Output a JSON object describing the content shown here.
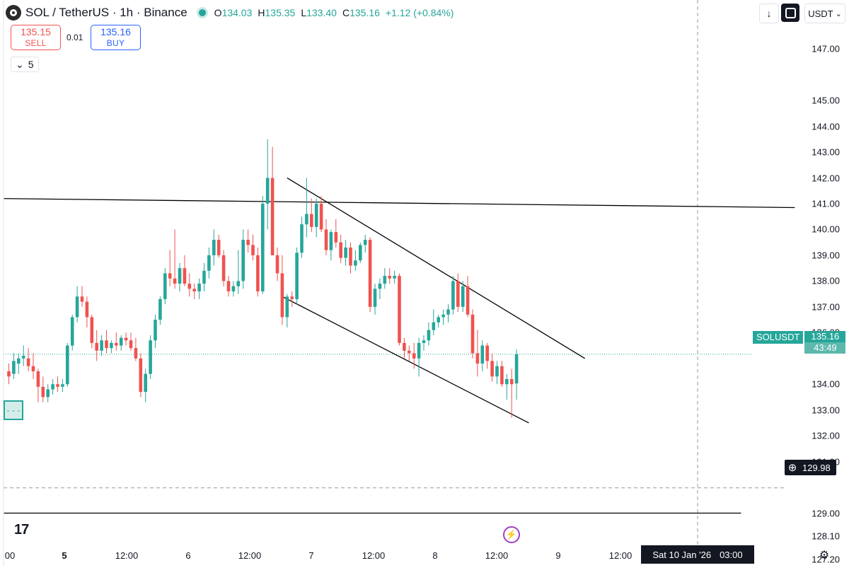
{
  "header": {
    "symbol": "SOL / TetherUS · 1h · Binance",
    "open_label": "O",
    "open": "134.03",
    "high_label": "H",
    "high": "135.35",
    "low_label": "L",
    "low": "133.40",
    "close_label": "C",
    "close": "135.16",
    "change": "+1.12 (+0.84%)"
  },
  "trade": {
    "sell_price": "135.15",
    "sell_label": "SELL",
    "spread": "0.01",
    "buy_price": "135.16",
    "buy_label": "BUY"
  },
  "indicators_toggle": {
    "count": "5"
  },
  "toolbar": {
    "currency": "USDT"
  },
  "price_axis": {
    "ticks": [
      {
        "label": "147.00",
        "value": 147.0
      },
      {
        "label": "145.00",
        "value": 145.0
      },
      {
        "label": "144.00",
        "value": 144.0
      },
      {
        "label": "143.00",
        "value": 143.0
      },
      {
        "label": "142.00",
        "value": 142.0
      },
      {
        "label": "141.00",
        "value": 141.0
      },
      {
        "label": "140.00",
        "value": 140.0
      },
      {
        "label": "139.00",
        "value": 139.0
      },
      {
        "label": "138.00",
        "value": 138.0
      },
      {
        "label": "137.00",
        "value": 137.0
      },
      {
        "label": "136.00",
        "value": 136.0
      },
      {
        "label": "134.00",
        "value": 134.0
      },
      {
        "label": "133.00",
        "value": 133.0
      },
      {
        "label": "132.00",
        "value": 132.0
      },
      {
        "label": "131.00",
        "value": 131.0
      },
      {
        "label": "129.00",
        "value": 129.0
      },
      {
        "label": "128.10",
        "value": 128.1
      },
      {
        "label": "127.20",
        "value": 127.2
      }
    ],
    "last_symbol": "SOLUSDT",
    "last_price": "135.16",
    "countdown": "43:49",
    "crosshair_price": "129.98"
  },
  "time_axis": {
    "labels": [
      {
        "label": "00",
        "bold": false
      },
      {
        "label": "5",
        "bold": true
      },
      {
        "label": "12:00",
        "bold": false
      },
      {
        "label": "6",
        "bold": false
      },
      {
        "label": "12:00",
        "bold": false
      },
      {
        "label": "7",
        "bold": false
      },
      {
        "label": "12:00",
        "bold": false
      },
      {
        "label": "8",
        "bold": false
      },
      {
        "label": "12:00",
        "bold": false
      },
      {
        "label": "9",
        "bold": false
      },
      {
        "label": "12:00",
        "bold": false
      }
    ],
    "crosshair_date": "Sat 10 Jan '26",
    "crosshair_time": "03:00"
  },
  "colors": {
    "up": "#26a69a",
    "down": "#ef5350",
    "text": "#131722",
    "drawing": "#000000"
  },
  "icons": {
    "download": "arrow-down-icon",
    "fullscreen": "square-icon",
    "settings": "gear-icon",
    "alert": "bolt-icon",
    "crosshair": "plus-icon"
  },
  "chart_data": {
    "type": "candlestick",
    "title": "SOL / TetherUS · 1h · Binance",
    "ylim": [
      126.6,
      148.9
    ],
    "y_scale": "linear",
    "candles": [
      [
        134.5,
        134.8,
        134.0,
        134.3
      ],
      [
        134.4,
        135.2,
        134.2,
        134.9
      ],
      [
        134.8,
        135.2,
        134.4,
        135.0
      ],
      [
        135.0,
        135.5,
        134.7,
        135.1
      ],
      [
        135.0,
        135.4,
        134.5,
        134.7
      ],
      [
        134.7,
        135.2,
        134.2,
        134.5
      ],
      [
        134.5,
        134.6,
        133.3,
        133.9
      ],
      [
        133.9,
        134.3,
        133.3,
        133.5
      ],
      [
        133.5,
        134.0,
        133.3,
        133.8
      ],
      [
        133.8,
        134.2,
        133.6,
        134.0
      ],
      [
        134.0,
        134.3,
        133.7,
        133.9
      ],
      [
        133.9,
        134.2,
        133.7,
        134.0
      ],
      [
        134.0,
        135.6,
        133.9,
        135.5
      ],
      [
        135.5,
        136.7,
        135.3,
        136.6
      ],
      [
        136.6,
        137.8,
        136.4,
        137.4
      ],
      [
        137.4,
        137.8,
        137.0,
        137.2
      ],
      [
        137.2,
        137.4,
        136.2,
        136.6
      ],
      [
        136.6,
        136.7,
        135.4,
        135.6
      ],
      [
        135.6,
        136.1,
        134.9,
        135.3
      ],
      [
        135.3,
        135.9,
        135.1,
        135.7
      ],
      [
        135.7,
        136.1,
        135.2,
        135.4
      ],
      [
        135.4,
        135.7,
        135.2,
        135.6
      ],
      [
        135.6,
        136.0,
        135.3,
        135.5
      ],
      [
        135.5,
        135.9,
        135.3,
        135.8
      ],
      [
        135.8,
        136.0,
        135.5,
        135.7
      ],
      [
        135.7,
        136.0,
        135.3,
        135.4
      ],
      [
        135.4,
        135.8,
        134.9,
        135.0
      ],
      [
        135.0,
        135.2,
        133.5,
        133.7
      ],
      [
        133.7,
        134.6,
        133.3,
        134.4
      ],
      [
        134.4,
        135.9,
        134.2,
        135.7
      ],
      [
        135.7,
        136.7,
        135.4,
        136.5
      ],
      [
        136.5,
        137.4,
        136.3,
        137.3
      ],
      [
        137.3,
        138.5,
        137.1,
        138.3
      ],
      [
        138.3,
        139.2,
        137.8,
        138.1
      ],
      [
        138.1,
        140.0,
        137.7,
        137.9
      ],
      [
        137.9,
        138.7,
        137.6,
        138.5
      ],
      [
        138.5,
        139.0,
        137.8,
        137.9
      ],
      [
        137.9,
        138.3,
        137.4,
        137.7
      ],
      [
        137.7,
        137.9,
        137.3,
        137.6
      ],
      [
        137.6,
        138.1,
        137.3,
        137.9
      ],
      [
        137.9,
        138.7,
        137.6,
        138.4
      ],
      [
        138.4,
        139.3,
        138.1,
        139.0
      ],
      [
        139.0,
        140.0,
        138.6,
        139.6
      ],
      [
        139.6,
        139.8,
        138.9,
        139.0
      ],
      [
        139.0,
        139.2,
        137.8,
        138.0
      ],
      [
        138.0,
        138.2,
        137.4,
        137.6
      ],
      [
        137.6,
        138.0,
        137.4,
        137.8
      ],
      [
        137.8,
        139.2,
        137.5,
        138.0
      ],
      [
        138.0,
        140.0,
        137.7,
        139.6
      ],
      [
        139.6,
        140.0,
        139.1,
        139.4
      ],
      [
        139.4,
        139.8,
        138.8,
        139.0
      ],
      [
        139.0,
        139.3,
        137.4,
        137.6
      ],
      [
        137.6,
        141.3,
        137.5,
        141.0
      ],
      [
        141.0,
        143.5,
        140.0,
        142.0
      ],
      [
        142.0,
        143.2,
        139.2,
        139.0
      ],
      [
        139.0,
        139.3,
        138.0,
        138.3
      ],
      [
        138.3,
        139.0,
        136.3,
        136.6
      ],
      [
        136.6,
        137.5,
        136.2,
        137.4
      ],
      [
        137.4,
        137.6,
        137.0,
        137.3
      ],
      [
        137.3,
        139.3,
        137.1,
        139.1
      ],
      [
        139.1,
        140.5,
        138.9,
        140.2
      ],
      [
        140.2,
        142.0,
        139.7,
        140.6
      ],
      [
        140.6,
        141.2,
        139.9,
        140.1
      ],
      [
        140.1,
        141.2,
        139.7,
        141.0
      ],
      [
        141.0,
        141.3,
        139.9,
        140.0
      ],
      [
        140.0,
        140.4,
        139.0,
        139.2
      ],
      [
        139.2,
        140.0,
        138.8,
        139.9
      ],
      [
        139.9,
        140.4,
        139.3,
        139.5
      ],
      [
        139.5,
        139.8,
        138.7,
        138.9
      ],
      [
        138.9,
        139.6,
        138.6,
        139.3
      ],
      [
        139.3,
        139.5,
        138.3,
        138.6
      ],
      [
        138.6,
        139.2,
        138.4,
        138.8
      ],
      [
        138.8,
        139.5,
        138.7,
        139.4
      ],
      [
        139.4,
        139.8,
        139.1,
        139.6
      ],
      [
        139.6,
        139.7,
        136.8,
        137.0
      ],
      [
        137.0,
        137.9,
        136.7,
        137.7
      ],
      [
        137.7,
        138.1,
        137.3,
        137.9
      ],
      [
        137.9,
        138.5,
        137.7,
        138.2
      ],
      [
        138.2,
        138.5,
        137.9,
        138.1
      ],
      [
        138.1,
        138.4,
        137.9,
        138.2
      ],
      [
        138.2,
        138.3,
        135.5,
        135.6
      ],
      [
        135.6,
        135.8,
        135.0,
        135.3
      ],
      [
        135.3,
        135.5,
        134.9,
        135.2
      ],
      [
        135.2,
        135.6,
        134.6,
        135.0
      ],
      [
        135.0,
        135.8,
        134.3,
        135.6
      ],
      [
        135.6,
        135.9,
        135.3,
        135.7
      ],
      [
        135.7,
        136.4,
        135.5,
        136.1
      ],
      [
        136.1,
        136.9,
        135.9,
        136.4
      ],
      [
        136.4,
        136.7,
        136.2,
        136.6
      ],
      [
        136.6,
        136.9,
        136.3,
        136.7
      ],
      [
        136.7,
        137.1,
        136.4,
        136.9
      ],
      [
        136.9,
        138.2,
        136.7,
        138.0
      ],
      [
        138.0,
        138.3,
        136.8,
        137.0
      ],
      [
        137.0,
        138.0,
        136.8,
        137.8
      ],
      [
        137.8,
        138.2,
        136.6,
        136.7
      ],
      [
        136.7,
        136.9,
        135.0,
        135.2
      ],
      [
        135.2,
        136.1,
        134.3,
        134.8
      ],
      [
        134.8,
        135.7,
        134.5,
        135.5
      ],
      [
        135.5,
        135.6,
        134.6,
        134.9
      ],
      [
        134.9,
        135.2,
        134.1,
        134.3
      ],
      [
        134.3,
        134.9,
        134.0,
        134.7
      ],
      [
        134.7,
        134.9,
        133.9,
        134.0
      ],
      [
        134.0,
        134.4,
        133.4,
        134.2
      ],
      [
        134.2,
        134.6,
        132.7,
        134.0
      ],
      [
        134.03,
        135.35,
        133.4,
        135.16
      ]
    ],
    "trendlines": [
      {
        "from": [
          -1,
          141.2
        ],
        "to": [
          161,
          140.85
        ]
      },
      {
        "from": [
          57,
          142.0
        ],
        "to": [
          118,
          135.0
        ]
      },
      {
        "from": [
          56,
          137.4
        ],
        "to": [
          106.5,
          132.5
        ]
      },
      {
        "from": [
          -1,
          129.0
        ],
        "to": [
          150,
          129.0
        ]
      }
    ],
    "last_price_line": 135.16,
    "crosshair_price_line": 129.98
  }
}
